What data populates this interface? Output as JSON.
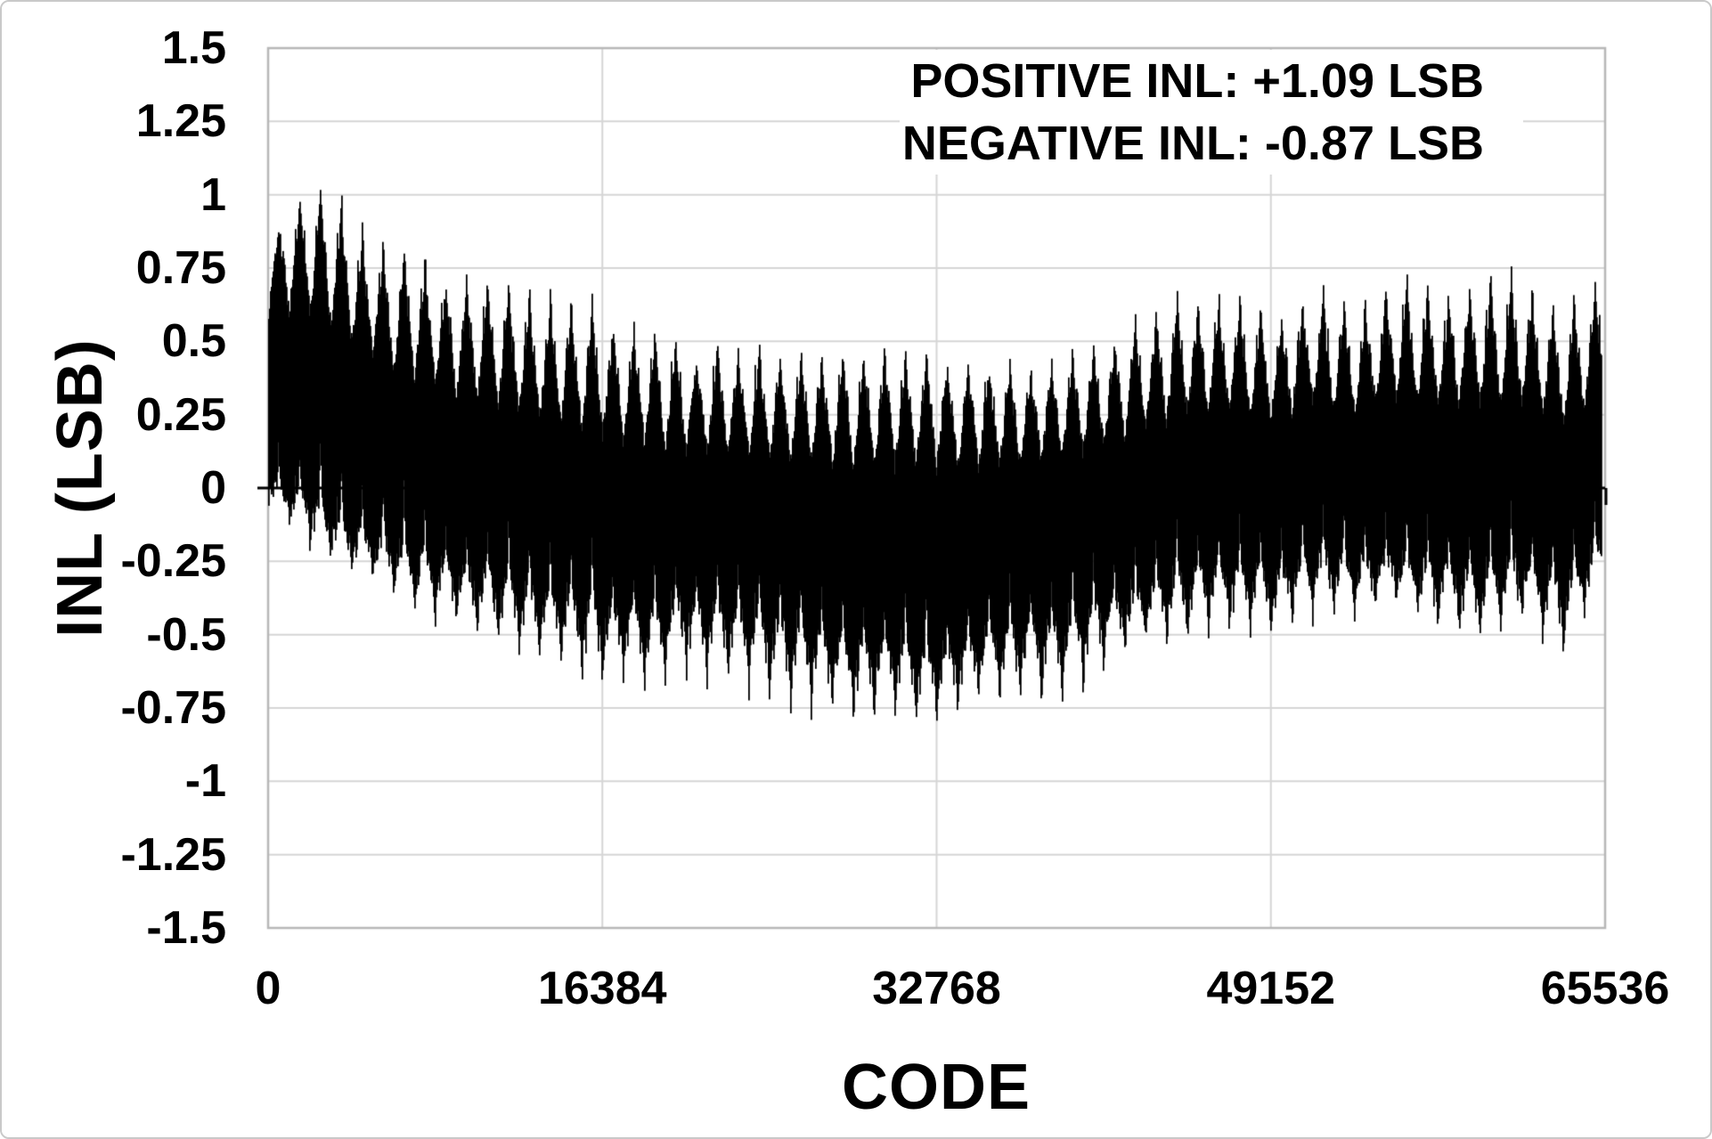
{
  "figure": {
    "background": "#ffffff",
    "border_color": "#c9c9c9"
  },
  "chart_data": {
    "type": "line",
    "title": "",
    "xlabel": "CODE",
    "ylabel": "INL (LSB)",
    "xlim": [
      0,
      65536
    ],
    "ylim": [
      -1.5,
      1.5
    ],
    "grid": true,
    "legend_position": "none",
    "gridline_color": "#d6d6d6",
    "axis_border_color": "#b7b7b7",
    "zero_line_color": "#000000",
    "x_ticks": [
      0,
      16384,
      32768,
      49152,
      65536
    ],
    "x_tick_labels": [
      "0",
      "16384",
      "32768",
      "49152",
      "65536"
    ],
    "y_ticks": [
      1.5,
      1.25,
      1,
      0.75,
      0.5,
      0.25,
      0,
      -0.25,
      -0.5,
      -0.75,
      -1,
      -1.25,
      -1.5
    ],
    "y_tick_labels": [
      "1.5",
      "1.25",
      "1",
      "0.75",
      "0.5",
      "0.25",
      "0",
      "-0.25",
      "-0.5",
      "-0.75",
      "-1",
      "-1.25",
      "-1.5"
    ],
    "annotation": {
      "position": "top-right",
      "lines": [
        "POSITIVE INL: +1.09 LSB",
        "NEGATIVE INL: -0.87 LSB"
      ]
    },
    "positive_inl_lsb": 1.09,
    "negative_inl_lsb": -0.87,
    "series": [
      {
        "name": "INL",
        "color": "#000000"
      }
    ],
    "envelope": {
      "comment": "INL min/max envelopes sampled every 2048 codes, in LSB",
      "codes": [
        0,
        2048,
        4096,
        6144,
        8192,
        10240,
        12288,
        14336,
        16384,
        18432,
        20480,
        22528,
        24576,
        26624,
        28672,
        30720,
        32768,
        34816,
        36864,
        38912,
        40960,
        43008,
        45056,
        47104,
        49152,
        51200,
        53248,
        55296,
        57344,
        59392,
        61440,
        63488,
        65536
      ],
      "spike_top": [
        0.88,
        1.09,
        1.0,
        0.85,
        0.8,
        0.77,
        0.73,
        0.7,
        0.66,
        0.58,
        0.52,
        0.52,
        0.5,
        0.48,
        0.52,
        0.5,
        0.47,
        0.44,
        0.44,
        0.48,
        0.55,
        0.62,
        0.7,
        0.72,
        0.62,
        0.72,
        0.66,
        0.78,
        0.72,
        0.76,
        0.79,
        0.64,
        0.78
      ],
      "band_top": [
        0.76,
        0.82,
        0.7,
        0.6,
        0.54,
        0.5,
        0.46,
        0.42,
        0.38,
        0.34,
        0.3,
        0.3,
        0.28,
        0.28,
        0.28,
        0.28,
        0.28,
        0.26,
        0.26,
        0.28,
        0.32,
        0.38,
        0.44,
        0.44,
        0.4,
        0.46,
        0.42,
        0.5,
        0.46,
        0.48,
        0.48,
        0.4,
        0.5
      ],
      "band_bottom": [
        0.02,
        -0.05,
        -0.14,
        -0.2,
        -0.26,
        -0.3,
        -0.34,
        -0.38,
        -0.42,
        -0.44,
        -0.4,
        -0.42,
        -0.46,
        -0.5,
        -0.55,
        -0.55,
        -0.58,
        -0.52,
        -0.48,
        -0.46,
        -0.4,
        -0.35,
        -0.3,
        -0.28,
        -0.3,
        -0.24,
        -0.26,
        -0.24,
        -0.28,
        -0.3,
        -0.26,
        -0.34,
        -0.18
      ],
      "notch_bottom": [
        -0.06,
        -0.22,
        -0.33,
        -0.44,
        -0.5,
        -0.56,
        -0.62,
        -0.7,
        -0.73,
        -0.75,
        -0.7,
        -0.73,
        -0.78,
        -0.81,
        -0.86,
        -0.85,
        -0.87,
        -0.8,
        -0.8,
        -0.78,
        -0.66,
        -0.6,
        -0.56,
        -0.52,
        -0.56,
        -0.46,
        -0.5,
        -0.46,
        -0.52,
        -0.55,
        -0.5,
        -0.6,
        -0.32
      ]
    },
    "texture": {
      "period_codes": 1024,
      "super_period_codes": 4096,
      "sample_step_codes": 2048,
      "seed": 20
    }
  }
}
